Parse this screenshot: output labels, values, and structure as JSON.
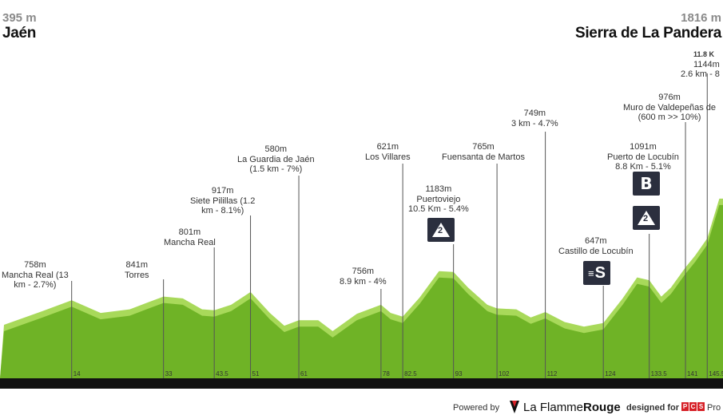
{
  "start": {
    "altitude": "395 m",
    "name": "Jaén"
  },
  "finish": {
    "altitude": "1816 m",
    "name": "Sierra de La Pandera"
  },
  "chart_data": {
    "type": "area",
    "profile_km": [
      0,
      8,
      14,
      20,
      26,
      30,
      33,
      37,
      41,
      43.5,
      47,
      51,
      55,
      58,
      61,
      65,
      68,
      73,
      78,
      80,
      82.5,
      86,
      90,
      93,
      96,
      100,
      102,
      106,
      109,
      112,
      116,
      120,
      124,
      128,
      131,
      133.5,
      136,
      138,
      141,
      143,
      145.5,
      148
    ],
    "profile_elev": [
      430,
      580,
      700,
      560,
      600,
      680,
      740,
      720,
      600,
      590,
      650,
      790,
      560,
      420,
      480,
      480,
      360,
      550,
      650,
      560,
      520,
      730,
      1020,
      1010,
      840,
      650,
      610,
      600,
      510,
      570,
      460,
      410,
      450,
      720,
      950,
      920,
      740,
      840,
      1060,
      1190,
      1380,
      1816
    ],
    "ylim": [
      0,
      1900
    ],
    "xlim": [
      0,
      148
    ],
    "km_markers": [
      {
        "km": 14,
        "label": "14"
      },
      {
        "km": 33,
        "label": "33"
      },
      {
        "km": 43.5,
        "label": "43.5"
      },
      {
        "km": 51,
        "label": "51"
      },
      {
        "km": 61,
        "label": "61"
      },
      {
        "km": 78,
        "label": "78"
      },
      {
        "km": 82.5,
        "label": "82.5"
      },
      {
        "km": 93,
        "label": "93"
      },
      {
        "km": 102,
        "label": "102"
      },
      {
        "km": 112,
        "label": "112"
      },
      {
        "km": 124,
        "label": "124"
      },
      {
        "km": 133.5,
        "label": "133.5"
      },
      {
        "km": 141,
        "label": "141"
      },
      {
        "km": 145.5,
        "label": "145.5"
      }
    ]
  },
  "points": [
    {
      "lines": [
        "758m",
        "Mancha Real (13",
        "km - 2.7%)"
      ]
    },
    {
      "lines": [
        "841m",
        "Torres"
      ]
    },
    {
      "lines": [
        "801m",
        "Mancha Real"
      ]
    },
    {
      "lines": [
        "917m",
        "Siete Pilillas (1.2",
        "km - 8.1%)"
      ]
    },
    {
      "lines": [
        "580m",
        "La Guardia de Jaén",
        "(1.5 km - 7%)"
      ]
    },
    {
      "lines": [
        "756m",
        "8.9 km - 4%"
      ]
    },
    {
      "lines": [
        "621m",
        "Los Villares"
      ]
    },
    {
      "lines": [
        "1183m",
        "Puertoviejo",
        "10.5 Km - 5.4%"
      ]
    },
    {
      "lines": [
        "765m",
        "Fuensanta de Martos"
      ]
    },
    {
      "lines": [
        "749m",
        "3 km - 4.7%"
      ]
    },
    {
      "lines": [
        "647m",
        "Castillo de Locubín"
      ]
    },
    {
      "lines": [
        "1091m",
        "Puerto de Locubín",
        "8.8 Km - 5.1%"
      ]
    },
    {
      "lines": [
        "976m",
        "Muro de Valdepeñas de",
        "(600 m >> 10%)"
      ]
    },
    {
      "lines": [
        "11.8 K",
        "1144m",
        "2.6 km - 8"
      ]
    }
  ],
  "badges": {
    "cat2_a": "2",
    "cat2_b": "2",
    "sprint": "S",
    "bonus": "B"
  },
  "footer": {
    "powered": "Powered by",
    "brand_a": "La Flamme",
    "brand_b": "Rouge",
    "designed": "designed for",
    "pro": "Pro"
  },
  "colors": {
    "profile_fill": "#6fb326",
    "profile_light": "#a8d95a",
    "ground": "#111111",
    "badge": "#2b2f3e"
  }
}
